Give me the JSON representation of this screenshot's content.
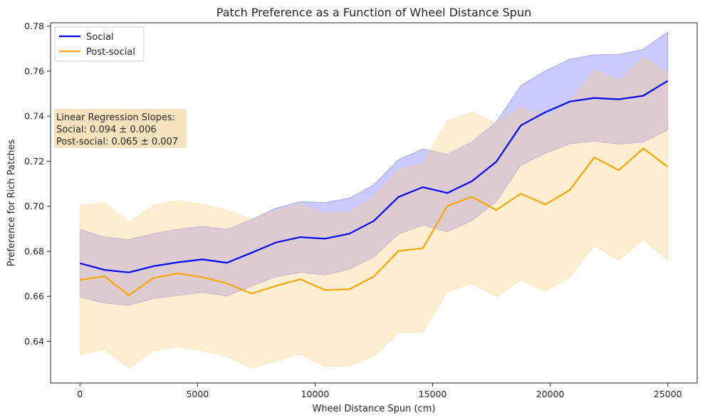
{
  "chart_data": {
    "type": "line",
    "title": "Patch Preference as a Function of Wheel Distance Spun",
    "xlabel": "Wheel Distance Spun (cm)",
    "ylabel": "Preference for Rich Patches",
    "xlim": [
      -1250,
      26250
    ],
    "ylim": [
      0.6215,
      0.7815
    ],
    "xticks": [
      0,
      5000,
      10000,
      15000,
      20000,
      25000
    ],
    "xtick_labels": [
      "0",
      "5000",
      "10000",
      "15000",
      "20000",
      "25000"
    ],
    "yticks": [
      0.64,
      0.66,
      0.68,
      0.7,
      0.72,
      0.74,
      0.76,
      0.78
    ],
    "ytick_labels": [
      "0.64",
      "0.66",
      "0.68",
      "0.70",
      "0.72",
      "0.74",
      "0.76",
      "0.78"
    ],
    "grid": false,
    "x": [
      0,
      1042,
      2083,
      3125,
      4167,
      5208,
      6250,
      7292,
      8333,
      9375,
      10417,
      11458,
      12500,
      13542,
      14583,
      15625,
      16667,
      17708,
      18750,
      19792,
      20833,
      21875,
      22917,
      23958,
      25000
    ],
    "series": [
      {
        "name": "Social",
        "color": "#0000ff",
        "band_color": "#6666ff",
        "values": [
          0.6747,
          0.6717,
          0.6706,
          0.6734,
          0.6751,
          0.6764,
          0.6749,
          0.6793,
          0.6839,
          0.6863,
          0.6856,
          0.6878,
          0.6935,
          0.7041,
          0.7085,
          0.7059,
          0.7111,
          0.7198,
          0.7359,
          0.7418,
          0.7465,
          0.7481,
          0.7475,
          0.7491,
          0.7557
        ],
        "lower": [
          0.6597,
          0.657,
          0.656,
          0.659,
          0.6604,
          0.6617,
          0.6601,
          0.6645,
          0.6687,
          0.6706,
          0.6695,
          0.672,
          0.6775,
          0.6876,
          0.6916,
          0.6887,
          0.6936,
          0.7022,
          0.7182,
          0.7235,
          0.7277,
          0.7289,
          0.7276,
          0.7285,
          0.7339
        ],
        "upper": [
          0.6897,
          0.6864,
          0.6852,
          0.6878,
          0.6898,
          0.6911,
          0.6897,
          0.6941,
          0.6991,
          0.702,
          0.7017,
          0.7036,
          0.7095,
          0.7206,
          0.7254,
          0.7231,
          0.7286,
          0.7374,
          0.7536,
          0.7601,
          0.7653,
          0.7673,
          0.7674,
          0.7697,
          0.7775
        ]
      },
      {
        "name": "Post-social",
        "color": "#ffa500",
        "band_color": "#ffd27f",
        "values": [
          0.6673,
          0.6689,
          0.6605,
          0.6682,
          0.6702,
          0.6685,
          0.6658,
          0.6612,
          0.6646,
          0.6676,
          0.6628,
          0.6631,
          0.6688,
          0.6801,
          0.6814,
          0.7001,
          0.7042,
          0.6983,
          0.7056,
          0.7008,
          0.7072,
          0.7217,
          0.716,
          0.7257,
          0.7175
        ],
        "lower": [
          0.6341,
          0.6365,
          0.6281,
          0.6359,
          0.6377,
          0.6358,
          0.6334,
          0.6282,
          0.6312,
          0.6343,
          0.6289,
          0.629,
          0.6335,
          0.6438,
          0.6442,
          0.6621,
          0.6657,
          0.6599,
          0.6672,
          0.6622,
          0.6685,
          0.6826,
          0.676,
          0.6853,
          0.6758
        ],
        "upper": [
          0.7004,
          0.7016,
          0.6929,
          0.7004,
          0.7025,
          0.7009,
          0.6983,
          0.6943,
          0.698,
          0.701,
          0.6968,
          0.6973,
          0.7041,
          0.7164,
          0.7187,
          0.7381,
          0.7418,
          0.7368,
          0.744,
          0.7394,
          0.7458,
          0.7605,
          0.7559,
          0.7661,
          0.7591
        ]
      }
    ],
    "legend": {
      "location": "top-left",
      "entries": [
        "Social",
        "Post-social"
      ]
    },
    "annotation": {
      "location": "left",
      "lines": [
        "Linear Regression Slopes:",
        "Social: 0.094 ± 0.006",
        "Post-social: 0.065 ± 0.007"
      ],
      "background": "#f5deb3"
    }
  }
}
